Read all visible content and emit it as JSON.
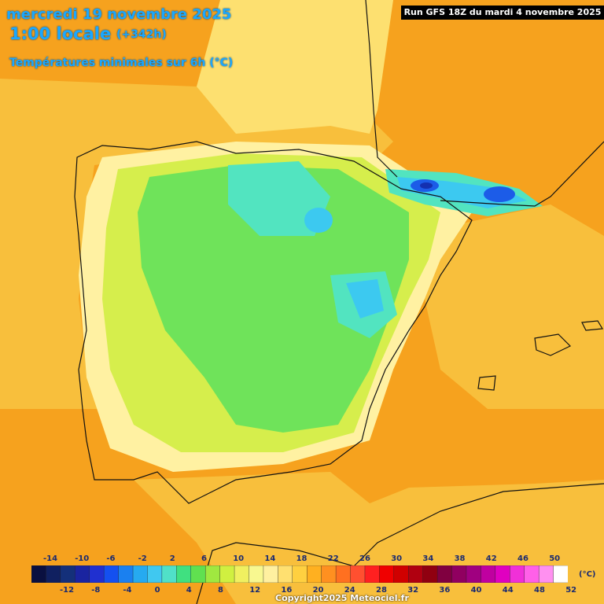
{
  "header": {
    "date": "mercredi 19 novembre 2025",
    "time": "1:00 locale",
    "offset": "(+342h)",
    "parameter": "Températures minimales sur 6h (°C)"
  },
  "run_label": "Run GFS 18Z du mardi 4 novembre 2025",
  "legend": {
    "unit": "(°C)",
    "top_labels": [
      "-14",
      "-10",
      "-6",
      "-2",
      "2",
      "6",
      "10",
      "14",
      "18",
      "22",
      "26",
      "30",
      "34",
      "38",
      "42",
      "46",
      "50"
    ],
    "bottom_labels": [
      "-12",
      "-8",
      "-4",
      "0",
      "4",
      "8",
      "12",
      "16",
      "20",
      "24",
      "28",
      "32",
      "36",
      "40",
      "44",
      "48",
      "52"
    ],
    "colors": [
      "#0a1040",
      "#102060",
      "#14307a",
      "#1a24a0",
      "#2030d0",
      "#1450f0",
      "#1a80f0",
      "#26aaf0",
      "#40c8f0",
      "#50e0c8",
      "#40e080",
      "#60e050",
      "#a0e840",
      "#d0f040",
      "#f0f060",
      "#f8f890",
      "#fff0a0",
      "#ffe070",
      "#ffd040",
      "#ffb020",
      "#ff9020",
      "#ff7020",
      "#ff5030",
      "#ff2020",
      "#f00000",
      "#d00000",
      "#b00010",
      "#900010",
      "#800040",
      "#900060",
      "#a00080",
      "#c000a0",
      "#e000c0",
      "#f030d8",
      "#ff60e8",
      "#ff90f0",
      "#ffffff"
    ]
  },
  "map": {
    "colors": {
      "deep_orange": "#f6a21e",
      "orange": "#f8bf3c",
      "yellow": "#fde070",
      "pale_yellow": "#fff1a2",
      "lime": "#d6ee4c",
      "green": "#6fe35a",
      "teal": "#52e4c0",
      "cyan": "#3cc9f0",
      "blue": "#1c5ce8",
      "dark_blue": "#1430b0"
    }
  },
  "copyright": "Copyright2025 Meteociel.fr"
}
